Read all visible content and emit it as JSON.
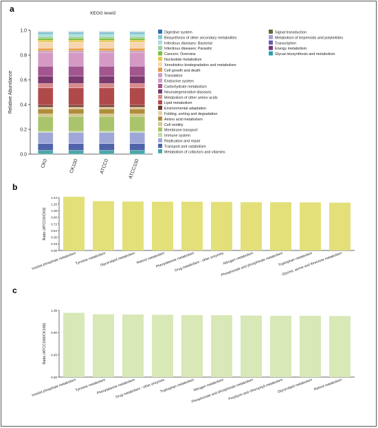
{
  "panels": {
    "a": "a",
    "b": "b",
    "c": "c"
  },
  "chart_data": [
    {
      "panel": "a",
      "type": "bar",
      "stacked": true,
      "title": "KEGG level2",
      "ylabel": "Relative Abundance",
      "xlabel": "",
      "ylim": [
        0,
        1.0
      ],
      "yticks": [
        "0.0",
        "0.2",
        "0.4",
        "0.6",
        "0.8",
        "1.0"
      ],
      "categories": [
        "CK0",
        "CK100",
        "ATCC0",
        "ATCC100"
      ],
      "series": [
        {
          "name": "Metabolism of cofactors and vitamins",
          "color": "#49a9a9",
          "values": [
            0.03,
            0.03,
            0.03,
            0.03
          ]
        },
        {
          "name": "Transport and catabolism",
          "color": "#4f63a8",
          "values": [
            0.055,
            0.055,
            0.055,
            0.055
          ]
        },
        {
          "name": "Replication and repair",
          "color": "#9ea7d8",
          "values": [
            0.09,
            0.09,
            0.09,
            0.09
          ]
        },
        {
          "name": "Immune system",
          "color": "#c4d9a7",
          "values": [
            0.01,
            0.01,
            0.01,
            0.01
          ]
        },
        {
          "name": "Membrane transport",
          "color": "#a9c46a",
          "values": [
            0.12,
            0.12,
            0.12,
            0.12
          ]
        },
        {
          "name": "Cell motility",
          "color": "#d4c890",
          "values": [
            0.02,
            0.02,
            0.02,
            0.02
          ]
        },
        {
          "name": "Amino acid metabolism",
          "color": "#b08d3c",
          "values": [
            0.04,
            0.04,
            0.04,
            0.04
          ]
        },
        {
          "name": "Folding, sorting and degradation",
          "color": "#e5cfa6",
          "values": [
            0.015,
            0.015,
            0.015,
            0.015
          ]
        },
        {
          "name": "Environmental adaptation",
          "color": "#6b3a2a",
          "values": [
            0.015,
            0.015,
            0.015,
            0.015
          ]
        },
        {
          "name": "Lipid metabolism",
          "color": "#b04a4a",
          "values": [
            0.14,
            0.14,
            0.14,
            0.14
          ]
        },
        {
          "name": "Metabolism of other amino acids",
          "color": "#d98a8a",
          "values": [
            0.035,
            0.035,
            0.035,
            0.035
          ]
        },
        {
          "name": "Neurodegenerative diseases",
          "color": "#7b3a6e",
          "values": [
            0.06,
            0.06,
            0.06,
            0.06
          ]
        },
        {
          "name": "Carbohydrate metabolism",
          "color": "#a2558f",
          "values": [
            0.08,
            0.08,
            0.08,
            0.08
          ]
        },
        {
          "name": "Endocrine system",
          "color": "#d49ac4",
          "values": [
            0.11,
            0.11,
            0.11,
            0.11
          ]
        },
        {
          "name": "Translation",
          "color": "#c9a0c0",
          "values": [
            0.015,
            0.015,
            0.015,
            0.015
          ]
        },
        {
          "name": "Cell growth and death",
          "color": "#e89b45",
          "values": [
            0.02,
            0.02,
            0.02,
            0.02
          ]
        },
        {
          "name": "Xenobiotics biodegradation and metabolism",
          "color": "#f6d6b0",
          "values": [
            0.05,
            0.05,
            0.05,
            0.05
          ]
        },
        {
          "name": "Nucleotide metabolism",
          "color": "#e6c84a",
          "values": [
            0.015,
            0.015,
            0.015,
            0.015
          ]
        },
        {
          "name": "Cancers: Overview",
          "color": "#7fbf3f",
          "values": [
            0.015,
            0.015,
            0.015,
            0.015
          ]
        },
        {
          "name": "Infectious diseases: Parasitic",
          "color": "#9ecf9e",
          "values": [
            0.015,
            0.015,
            0.015,
            0.015
          ]
        },
        {
          "name": "Infectious diseases: Bacterial",
          "color": "#a8dede",
          "values": [
            0.015,
            0.015,
            0.015,
            0.015
          ]
        },
        {
          "name": "Biosynthesis of other secondary metabolites",
          "color": "#7fcfcf",
          "values": [
            0.015,
            0.015,
            0.015,
            0.015
          ]
        },
        {
          "name": "Digestive system",
          "color": "#2e6fb2",
          "values": [
            0.005,
            0.005,
            0.005,
            0.005
          ]
        },
        {
          "name": "Signal transduction",
          "color": "#5b6e34",
          "values": [
            0.002,
            0.002,
            0.002,
            0.002
          ]
        },
        {
          "name": "Metabolism of terpenoids and polyketides",
          "color": "#a7a0d0",
          "values": [
            0.002,
            0.002,
            0.002,
            0.002
          ]
        },
        {
          "name": "Transcription",
          "color": "#6a5bb0",
          "values": [
            0.002,
            0.002,
            0.002,
            0.002
          ]
        },
        {
          "name": "Energy metabolism",
          "color": "#6e3a7a",
          "values": [
            0.002,
            0.002,
            0.002,
            0.002
          ]
        },
        {
          "name": "Glycan biosynthesis and metabolism",
          "color": "#26a0b0",
          "values": [
            0.002,
            0.002,
            0.002,
            0.002
          ]
        }
      ],
      "legend": {
        "left": [
          "Digestive system",
          "Biosynthesis of other secondary metabolites",
          "Infectious diseases: Bacterial",
          "Infectious diseases: Parasitic",
          "Cancers: Overview",
          "Nucleotide metabolism",
          "Xenobiotics biodegradation and metabolism",
          "Cell growth and death",
          "Translation",
          "Endocrine system",
          "Carbohydrate metabolism",
          "Neurodegenerative diseases",
          "Metabolism of other amino acids",
          "Lipid metabolism",
          "Environmental adaptation",
          "Folding, sorting and degradation",
          "Amino acid metabolism",
          "Cell motility",
          "Membrane transport",
          "Immune system",
          "Replication and repair",
          "Transport and catabolism",
          "Metabolism of cofactors and vitamins"
        ],
        "right": [
          "Signal transduction",
          "Metabolism of terpenoids and polyketides",
          "Transcription",
          "Energy metabolism",
          "Glycan biosynthesis and metabolism"
        ]
      }
    },
    {
      "panel": "b",
      "type": "bar",
      "title": "",
      "ylabel": "Ratio (ATCC0/CK0)",
      "xlabel": "",
      "ylim": [
        0,
        1.44
      ],
      "yticks": [
        "0.00",
        "0.18",
        "0.36",
        "0.54",
        "0.72",
        "0.90",
        "1.08",
        "1.26",
        "1.44"
      ],
      "bar_color": "#e3e07a",
      "categories": [
        "Inositol phosphate metabolism",
        "Tyrosine metabolism",
        "Glycerolipid metabolism",
        "Retinol metabolism",
        "Phenylalanine metabolism",
        "Drug metabolism - other enzymes",
        "Nitrogen metabolism",
        "Phosphonate and phosphinate metabolism",
        "Tryptophan metabolism",
        "Glycine, serine and threonine metabolism"
      ],
      "values": [
        1.46,
        1.34,
        1.33,
        1.325,
        1.325,
        1.32,
        1.31,
        1.31,
        1.305,
        1.3
      ]
    },
    {
      "panel": "c",
      "type": "bar",
      "title": "",
      "ylabel": "Ratio (ATCC100/CK100)",
      "xlabel": "",
      "ylim": [
        0,
        1.35
      ],
      "yticks": [
        "0.00",
        "0.45",
        "0.90",
        "1.35"
      ],
      "bar_color": "#d8e8b6",
      "categories": [
        "Inositol phosphate metabolism",
        "Tyrosine metabolism",
        "Phenylalanine metabolism",
        "Drug metabolism - other enzymes",
        "Tryptophan metabolism",
        "Nitrogen metabolism",
        "Phosphonate and phosphinate metabolism",
        "Porphyrin and chlorophyll metabolism",
        "Glycerolipid metabolism",
        "Retinol metabolism"
      ],
      "values": [
        1.3,
        1.27,
        1.265,
        1.26,
        1.255,
        1.25,
        1.245,
        1.24,
        1.24,
        1.235
      ]
    }
  ]
}
